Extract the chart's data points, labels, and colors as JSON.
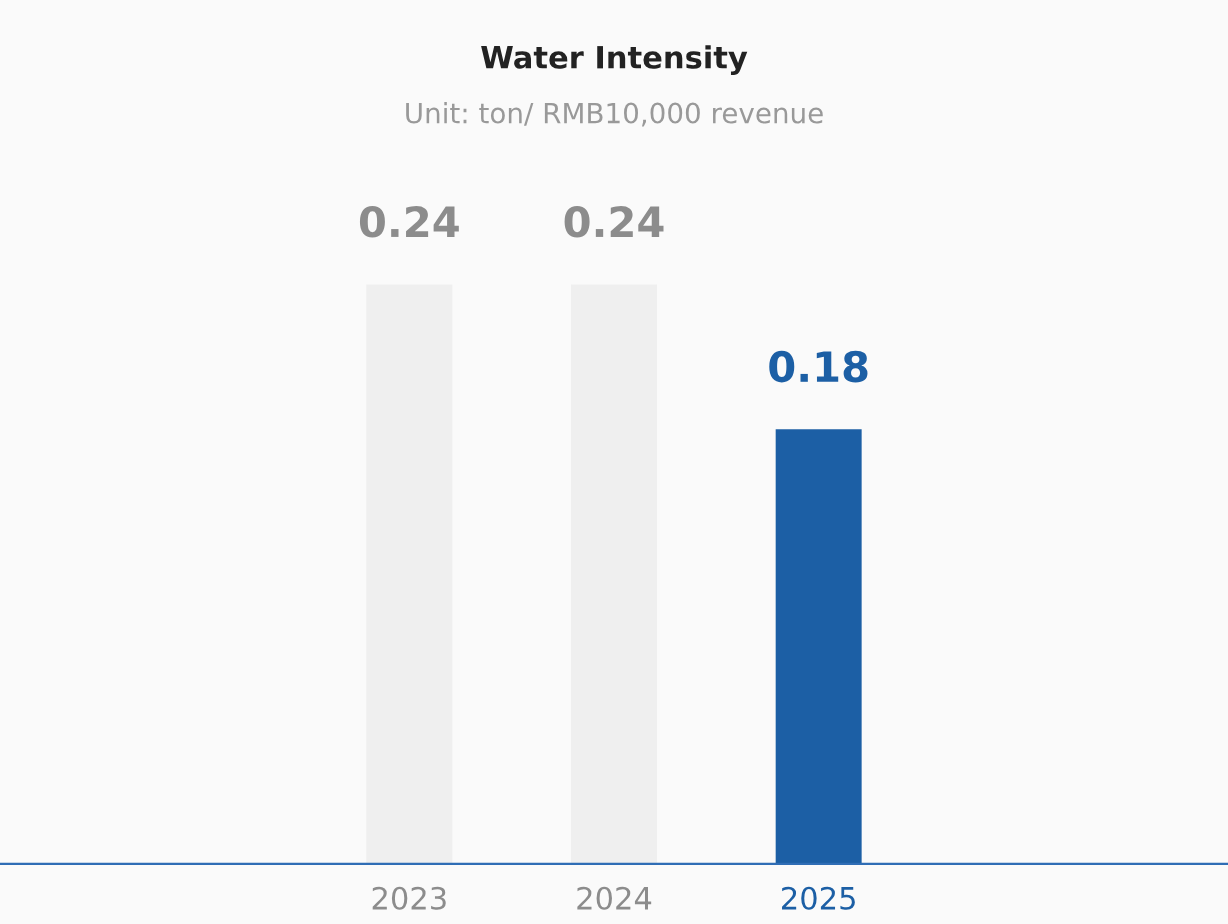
{
  "chart_data": {
    "type": "bar",
    "title": "Water Intensity",
    "subtitle": "Unit: ton/ RMB10,000 revenue",
    "categories": [
      "2023",
      "2024",
      "2025"
    ],
    "values": [
      0.24,
      0.24,
      0.18
    ],
    "colors": [
      "#efefef",
      "#efefef",
      "#1c5fa5"
    ],
    "data_labels": true,
    "grid": false,
    "legend": false
  }
}
